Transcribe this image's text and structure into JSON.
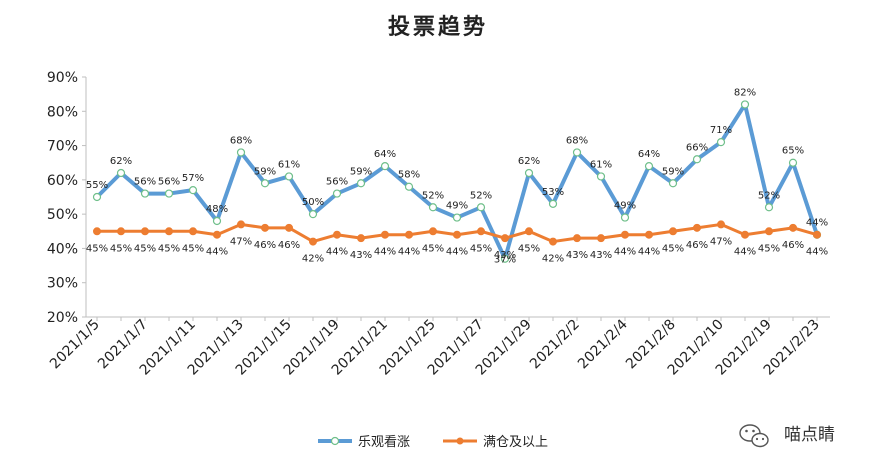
{
  "chart_data": {
    "type": "line",
    "title": "投票趋势",
    "xlabel": "",
    "ylabel": "",
    "ylim": [
      0.2,
      0.9
    ],
    "yticks": [
      "20%",
      "30%",
      "40%",
      "50%",
      "60%",
      "70%",
      "80%",
      "90%"
    ],
    "tick_labels": [
      "2021/1/5",
      "2021/1/7",
      "2021/1/11",
      "2021/1/13",
      "2021/1/15",
      "2021/1/19",
      "2021/1/21",
      "2021/1/25",
      "2021/1/27",
      "2021/1/29",
      "2021/2/2",
      "2021/2/4",
      "2021/2/8",
      "2021/2/10",
      "2021/2/19",
      "2021/2/23"
    ],
    "legend_position": "bottom",
    "series": [
      {
        "name": "乐观看涨",
        "color": "#5b9bd5",
        "values": [
          0.55,
          0.62,
          0.56,
          0.56,
          0.57,
          0.48,
          0.68,
          0.59,
          0.61,
          0.5,
          0.56,
          0.59,
          0.64,
          0.58,
          0.52,
          0.49,
          0.52,
          0.37,
          0.62,
          0.53,
          0.68,
          0.61,
          0.49,
          0.64,
          0.59,
          0.66,
          0.71,
          0.82,
          0.52,
          0.65,
          0.44
        ],
        "labels": [
          "55%",
          "62%",
          "56%",
          "56%",
          "57%",
          "48%",
          "68%",
          "59%",
          "61%",
          "50%",
          "56%",
          "59%",
          "64%",
          "58%",
          "52%",
          "49%",
          "52%",
          "37%",
          "62%",
          "53%",
          "68%",
          "61%",
          "49%",
          "64%",
          "59%",
          "66%",
          "71%",
          "82%",
          "52%",
          "65%",
          "44%"
        ]
      },
      {
        "name": "满仓及以上",
        "color": "#ed7d31",
        "values": [
          0.45,
          0.45,
          0.45,
          0.45,
          0.45,
          0.44,
          0.47,
          0.46,
          0.46,
          0.42,
          0.44,
          0.43,
          0.44,
          0.44,
          0.45,
          0.44,
          0.45,
          0.43,
          0.45,
          0.42,
          0.43,
          0.43,
          0.44,
          0.44,
          0.45,
          0.46,
          0.47,
          0.44,
          0.45,
          0.46,
          0.44
        ],
        "labels": [
          "45%",
          "45%",
          "45%",
          "45%",
          "45%",
          "44%",
          "47%",
          "46%",
          "46%",
          "42%",
          "44%",
          "43%",
          "44%",
          "44%",
          "45%",
          "44%",
          "45%",
          "43%",
          "45%",
          "42%",
          "43%",
          "43%",
          "44%",
          "44%",
          "45%",
          "46%",
          "47%",
          "44%",
          "45%",
          "46%",
          "44%"
        ]
      }
    ]
  },
  "watermark": {
    "text": "喵点睛",
    "icon": "wechat-icon"
  }
}
